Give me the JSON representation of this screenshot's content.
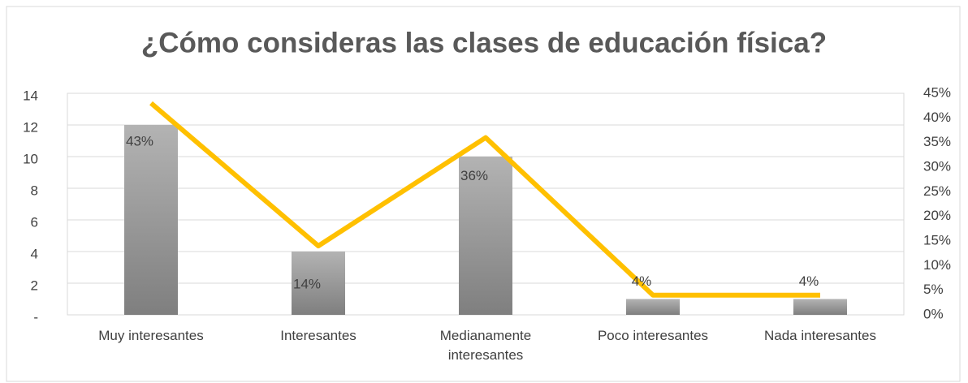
{
  "chart_data": {
    "type": "bar-line",
    "title": "¿Cómo consideras las clases de educación física?",
    "categories": [
      "Muy interesantes",
      "Interesantes",
      "Medianamente interesantes",
      "Poco interesantes",
      "Nada interesantes"
    ],
    "series": [
      {
        "type": "bar",
        "color": "#a6a6a6",
        "values": [
          12,
          4,
          10,
          1,
          1
        ]
      },
      {
        "type": "line",
        "color": "#ffc000",
        "axis": "y2",
        "values": [
          43,
          14,
          36,
          4,
          4
        ],
        "value_labels": [
          "43%",
          "14%",
          "36%",
          "4%",
          "4%"
        ]
      }
    ],
    "ylim": [
      0,
      14
    ],
    "yticks": [
      {
        "value": 0,
        "label": "-"
      },
      2,
      4,
      6,
      8,
      10,
      12,
      14
    ],
    "y2lim": [
      0,
      45
    ],
    "y2ticks": [
      {
        "value": 0,
        "label": "0%"
      },
      {
        "value": 5,
        "label": "5%"
      },
      {
        "value": 10,
        "label": "10%"
      },
      {
        "value": 15,
        "label": "15%"
      },
      {
        "value": 20,
        "label": "20%"
      },
      {
        "value": 25,
        "label": "25%"
      },
      {
        "value": 30,
        "label": "30%"
      },
      {
        "value": 35,
        "label": "35%"
      },
      {
        "value": 40,
        "label": "40%"
      },
      {
        "value": 45,
        "label": "45%"
      }
    ],
    "grid": true
  }
}
